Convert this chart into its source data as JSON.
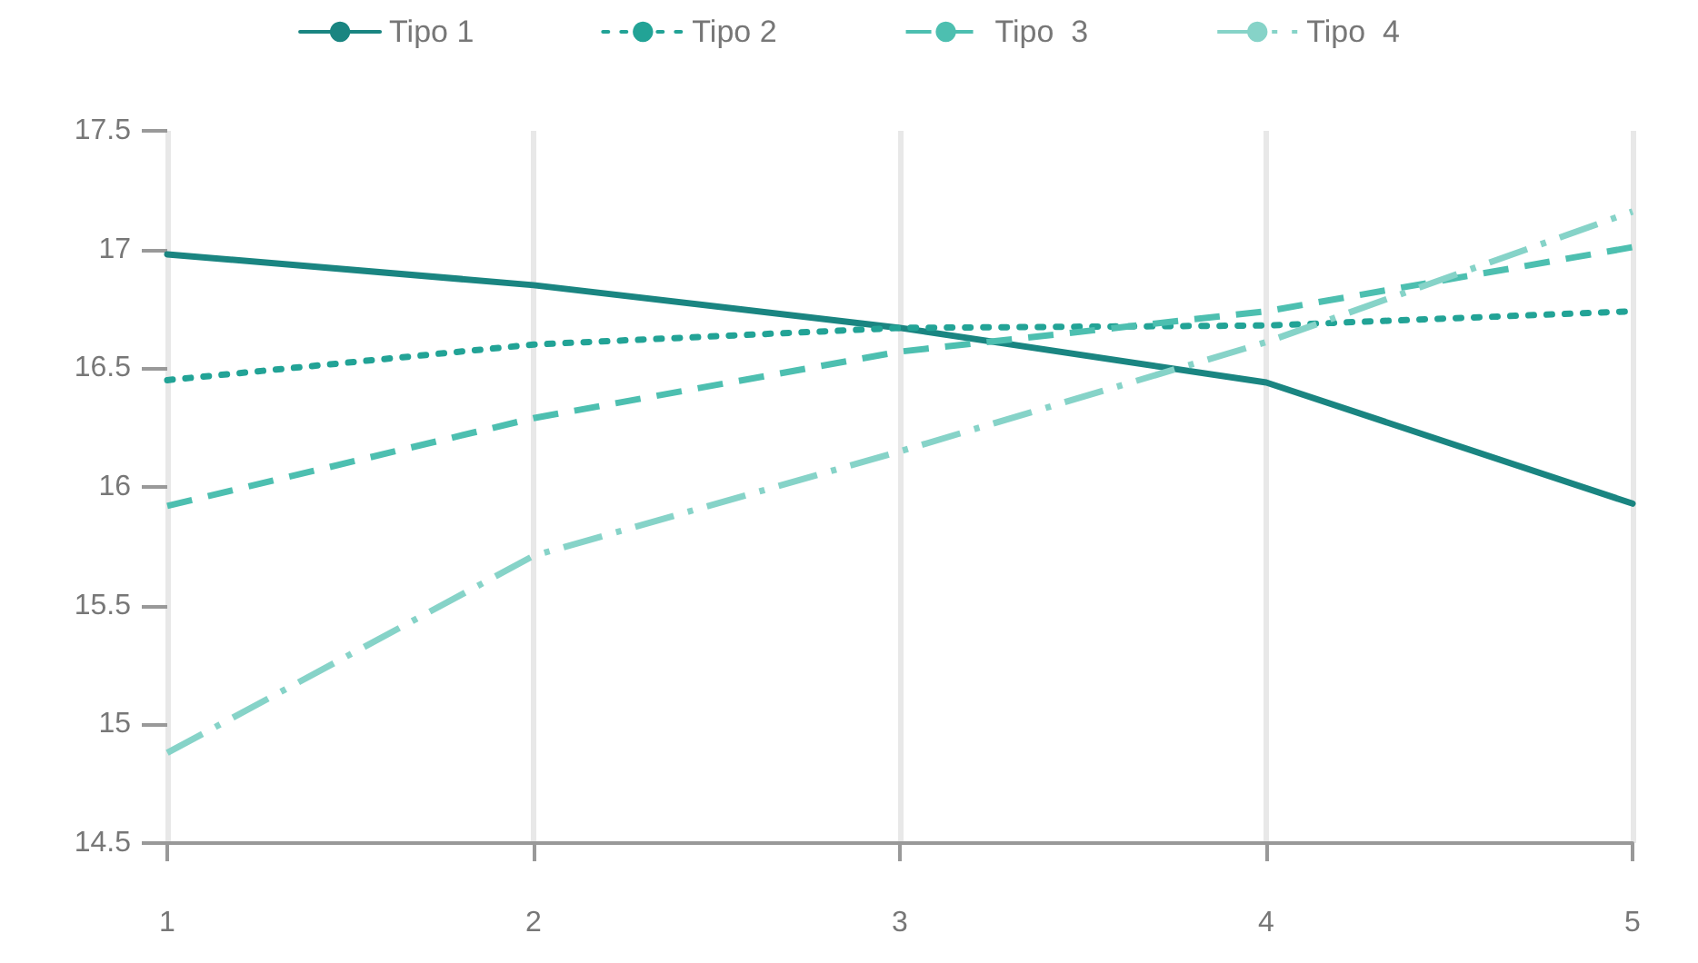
{
  "chart_data": {
    "type": "line",
    "categories": [
      "1",
      "2",
      "3",
      "4",
      "5"
    ],
    "series": [
      {
        "name": "Tipo 1",
        "color": "#1a8581",
        "line_style": "solid",
        "values": [
          16.98,
          16.85,
          16.67,
          16.44,
          15.93
        ]
      },
      {
        "name": "Tipo 2",
        "color": "#22a396",
        "line_style": "dotted",
        "values": [
          16.45,
          16.6,
          16.67,
          16.68,
          16.74
        ]
      },
      {
        "name": "Tipo  3",
        "color": "#4dbfb0",
        "line_style": "dashed",
        "values": [
          15.92,
          16.29,
          16.57,
          16.74,
          17.01
        ]
      },
      {
        "name": "Tipo  4",
        "color": "#86d3c8",
        "line_style": "dashdot",
        "values": [
          14.88,
          15.71,
          16.15,
          16.61,
          17.16
        ]
      }
    ],
    "ylim": [
      14.5,
      17.5
    ],
    "yticks": [
      14.5,
      15,
      15.5,
      16,
      16.5,
      17,
      17.5
    ],
    "grid": "x",
    "legend": "top",
    "marker": "none"
  }
}
